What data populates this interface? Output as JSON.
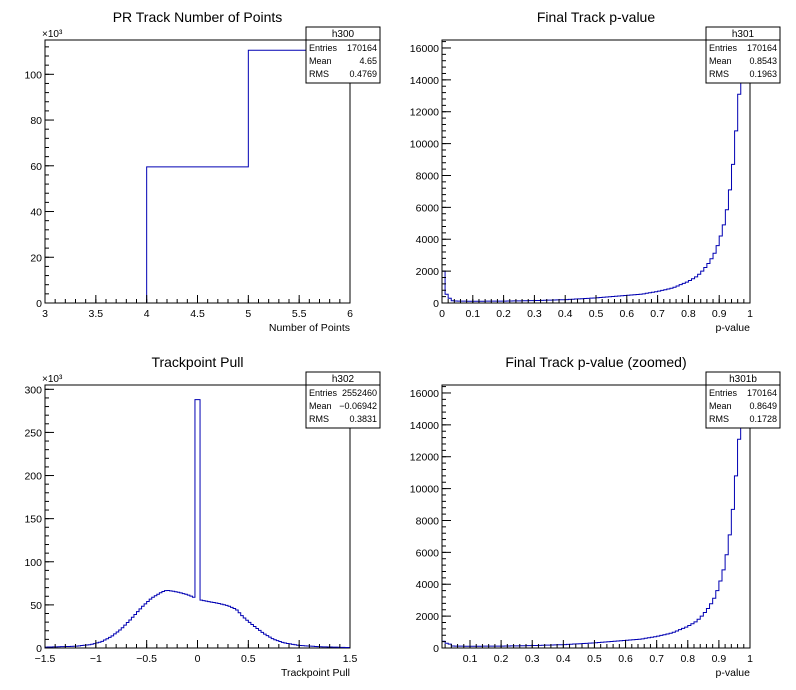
{
  "chart_data": [
    {
      "type": "histogram",
      "title": "PR Track Number of Points",
      "xlabel": "Number of Points",
      "ylabel": "",
      "y_multiplier_label": "×10³",
      "xlim": [
        3,
        6
      ],
      "ylim": [
        0,
        115
      ],
      "x_ticks": [
        "3",
        "3.5",
        "4",
        "4.5",
        "5",
        "5.5",
        "6"
      ],
      "y_ticks": [
        "0",
        "20",
        "40",
        "60",
        "80",
        "100"
      ],
      "bin_edges": [
        3,
        4,
        5,
        6
      ],
      "values": [
        0,
        59.5,
        110.5
      ],
      "stats": {
        "name": "h300",
        "rows": [
          {
            "label": "Entries",
            "value": "170164"
          },
          {
            "label": "Mean",
            "value": "4.65"
          },
          {
            "label": "RMS",
            "value": "0.4769"
          }
        ]
      }
    },
    {
      "type": "histogram",
      "title": "Final Track p-value",
      "xlabel": "p-value",
      "ylabel": "",
      "xlim": [
        0,
        1
      ],
      "ylim": [
        0,
        16500
      ],
      "x_ticks": [
        "0",
        "0.1",
        "0.2",
        "0.3",
        "0.4",
        "0.5",
        "0.6",
        "0.7",
        "0.8",
        "0.9",
        "1"
      ],
      "y_ticks": [
        "0",
        "2000",
        "4000",
        "6000",
        "8000",
        "10000",
        "12000",
        "14000",
        "16000"
      ],
      "stats": {
        "name": "h301",
        "rows": [
          {
            "label": "Entries",
            "value": "170164"
          },
          {
            "label": "Mean",
            "value": "0.8543"
          },
          {
            "label": "RMS",
            "value": "0.1963"
          }
        ]
      }
    },
    {
      "type": "histogram",
      "title": "Trackpoint Pull",
      "xlabel": "Trackpoint Pull",
      "ylabel": "",
      "y_multiplier_label": "×10³",
      "xlim": [
        -1.5,
        1.5
      ],
      "ylim": [
        0,
        305
      ],
      "x_ticks": [
        "−1.5",
        "−1",
        "−0.5",
        "0",
        "0.5",
        "1",
        "1.5"
      ],
      "y_ticks": [
        "0",
        "50",
        "100",
        "150",
        "200",
        "250",
        "300"
      ],
      "stats": {
        "name": "h302",
        "rows": [
          {
            "label": "Entries",
            "value": "2552460"
          },
          {
            "label": "Mean",
            "value": "−0.06942"
          },
          {
            "label": "RMS",
            "value": "0.3831"
          }
        ]
      }
    },
    {
      "type": "histogram",
      "title": "Final Track p-value (zoomed)",
      "xlabel": "p-value",
      "ylabel": "",
      "xlim": [
        0.01,
        1
      ],
      "ylim": [
        0,
        16500
      ],
      "x_ticks": [
        "0.1",
        "0.2",
        "0.3",
        "0.4",
        "0.5",
        "0.6",
        "0.7",
        "0.8",
        "0.9",
        "1"
      ],
      "y_ticks": [
        "0",
        "2000",
        "4000",
        "6000",
        "8000",
        "10000",
        "12000",
        "14000",
        "16000"
      ],
      "stats": {
        "name": "h301b",
        "rows": [
          {
            "label": "Entries",
            "value": "170164"
          },
          {
            "label": "Mean",
            "value": "0.8649"
          },
          {
            "label": "RMS",
            "value": "0.1728"
          }
        ]
      }
    }
  ]
}
